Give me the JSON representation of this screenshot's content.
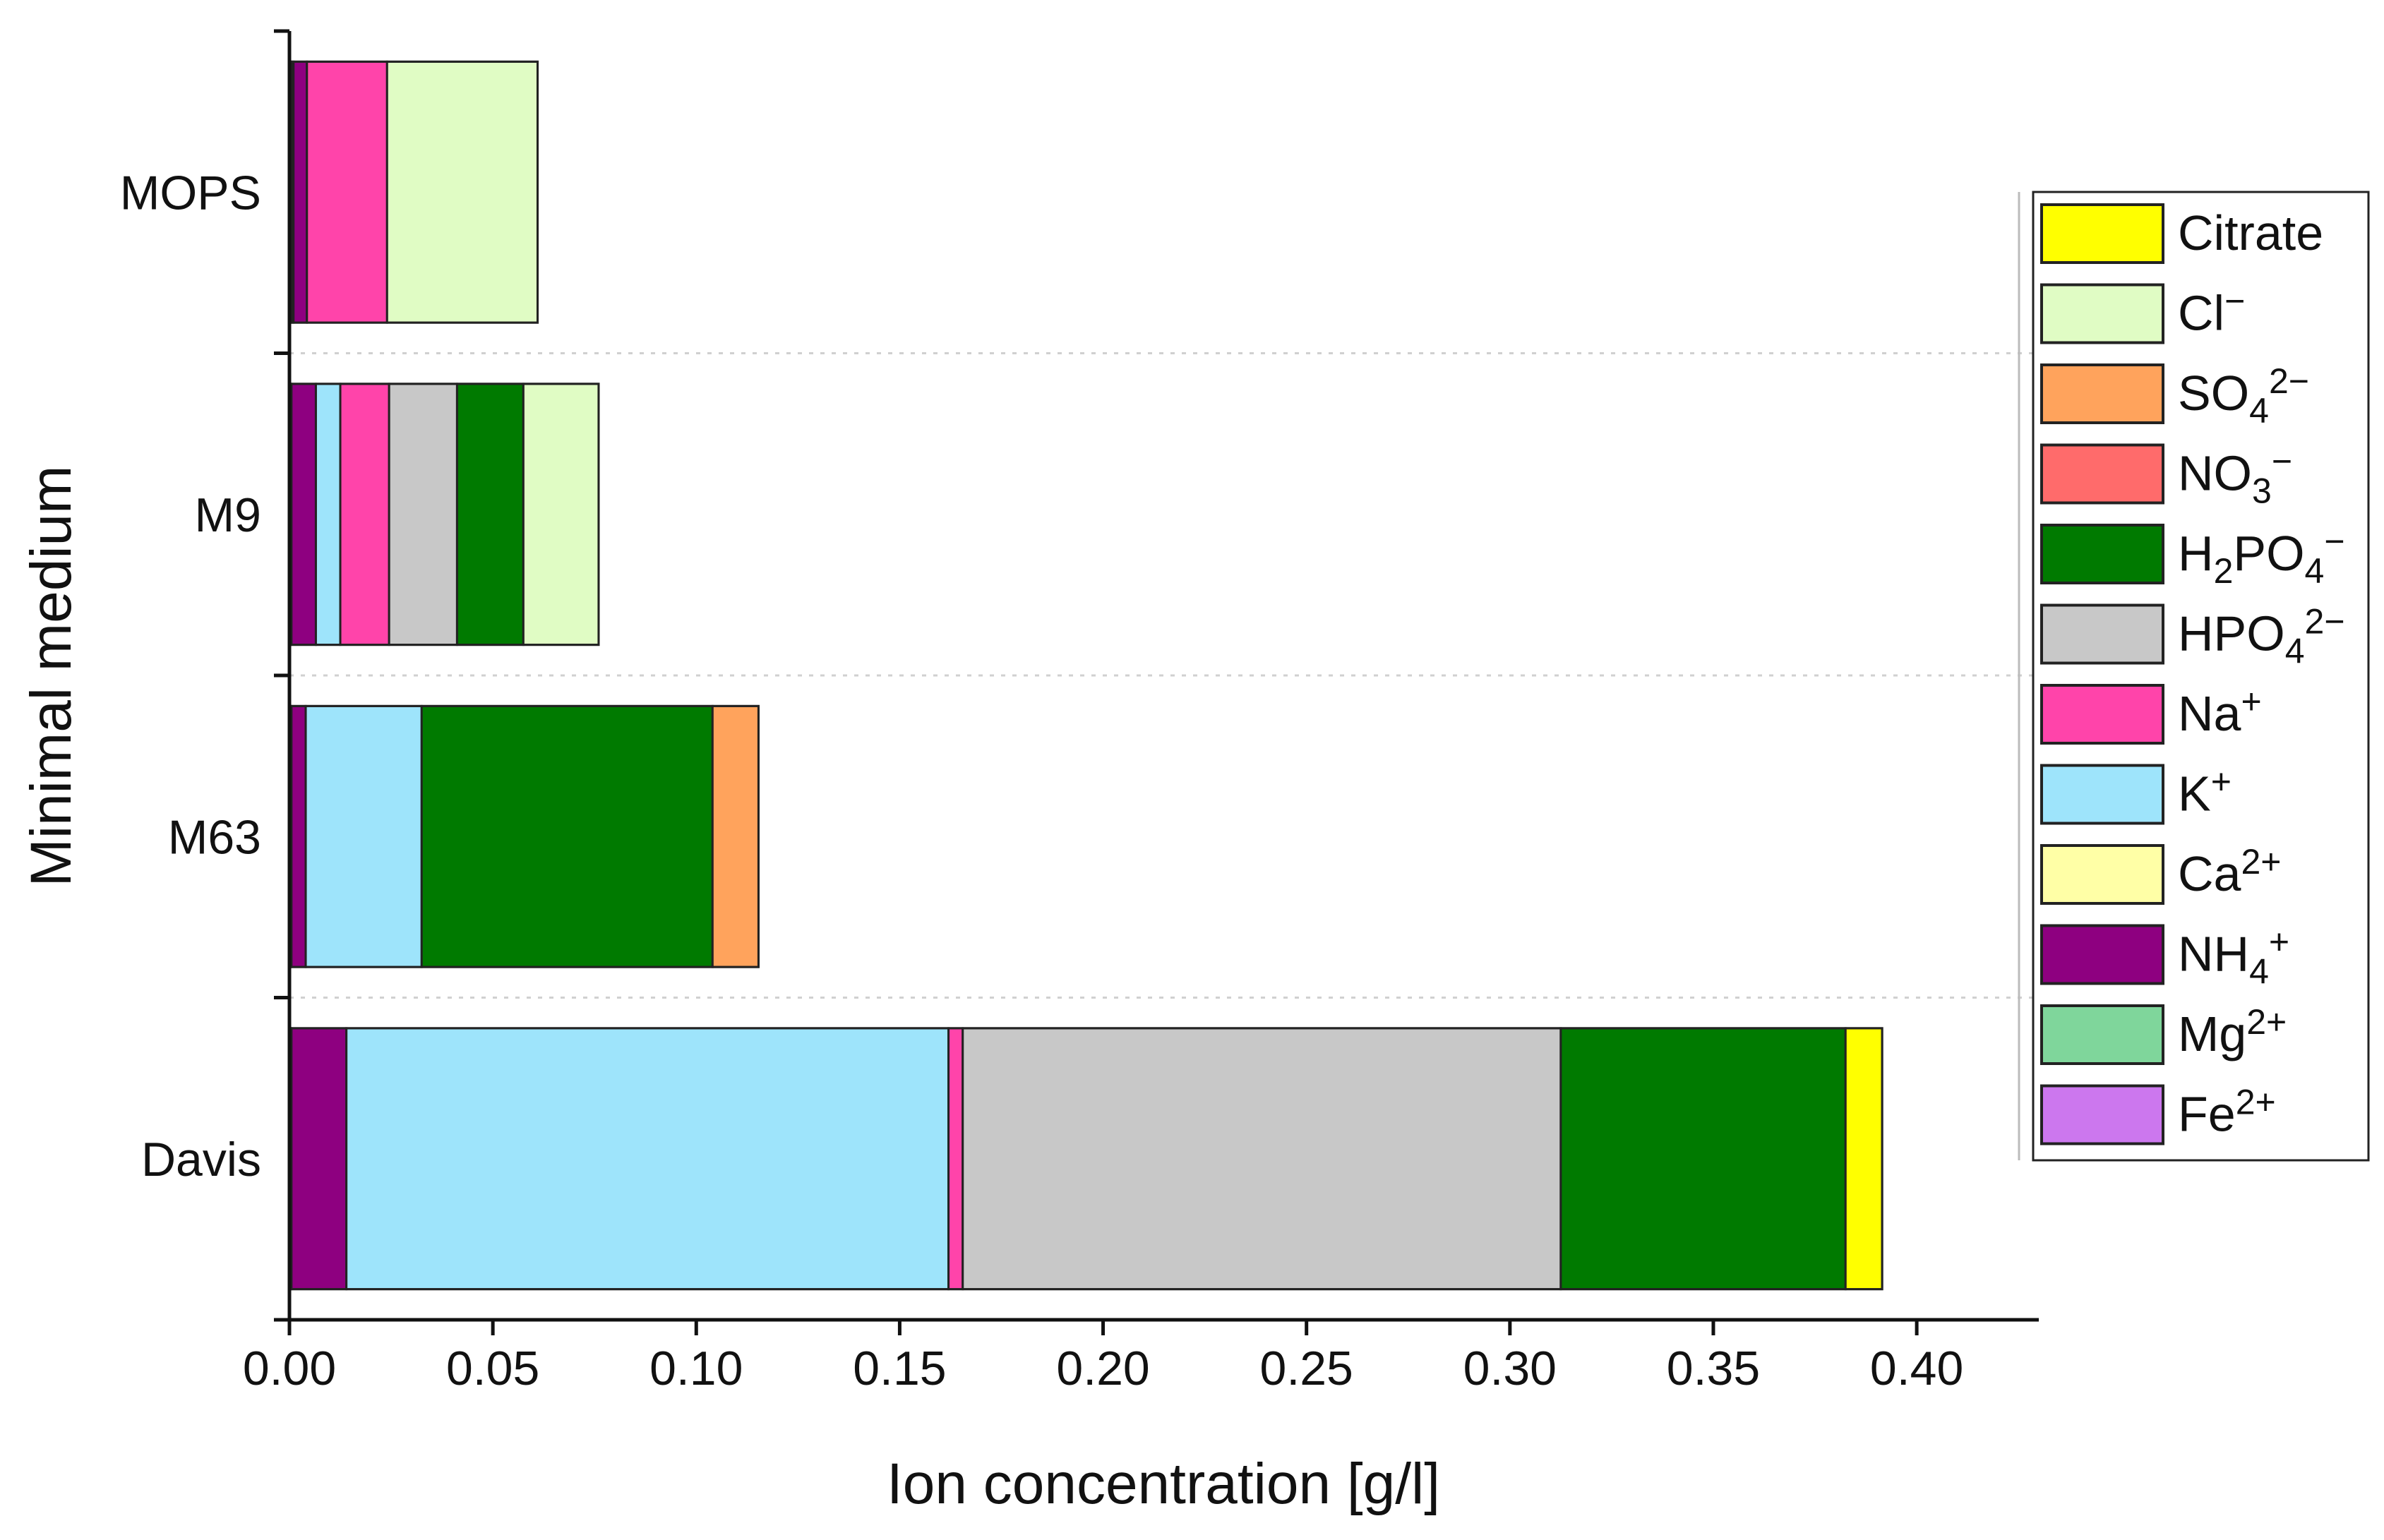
{
  "chart_data": {
    "type": "bar",
    "orientation": "horizontal",
    "stacked": true,
    "title": "",
    "xlabel": "Ion concentration [g/l]",
    "ylabel": "Minimal medium",
    "xlim": [
      0,
      0.43
    ],
    "xticks": [
      0.0,
      0.05,
      0.1,
      0.15,
      0.2,
      0.25,
      0.3,
      0.35,
      0.4
    ],
    "xtick_labels": [
      "0.00",
      "0.05",
      "0.10",
      "0.15",
      "0.20",
      "0.25",
      "0.30",
      "0.35",
      "0.40"
    ],
    "categories": [
      "MOPS",
      "M9",
      "M63",
      "Davis"
    ],
    "legend_position": "right",
    "series": [
      {
        "name": "Mg2+",
        "label": "Mg",
        "sub": "",
        "sup": "2+",
        "color": "#7fd69b",
        "values": [
          0.0005,
          0.0005,
          0.0005,
          0.0005
        ]
      },
      {
        "name": "Fe2+",
        "label": "Fe",
        "sub": "",
        "sup": "2+",
        "color": "#cc77ee",
        "values": [
          0.0005,
          0.0,
          0.0,
          0.0
        ]
      },
      {
        "name": "NH4+",
        "label": "NH",
        "sub": "4",
        "sup": "+",
        "color": "#8e0080",
        "values": [
          0.0033,
          0.006,
          0.0035,
          0.0135
        ]
      },
      {
        "name": "K+",
        "label": "K",
        "sub": "",
        "sup": "+",
        "color": "#9ee4fb",
        "values": [
          0.0,
          0.006,
          0.0285,
          0.148
        ]
      },
      {
        "name": "Na+",
        "label": "Na",
        "sub": "",
        "sup": "+",
        "color": "#ff44aa",
        "values": [
          0.0197,
          0.012,
          0.0,
          0.0035
        ]
      },
      {
        "name": "HPO42-",
        "label": "HPO",
        "sub": "4",
        "sup": "2−",
        "color": "#c8c8c8",
        "values": [
          0.0,
          0.0167,
          0.0,
          0.147
        ]
      },
      {
        "name": "H2PO4-",
        "label": "H",
        "sub": "2",
        "mid": "PO",
        "sub2": "4",
        "sup": "−",
        "color": "#007a00",
        "values": [
          0.0,
          0.0163,
          0.0715,
          0.07
        ]
      },
      {
        "name": "SO42-",
        "label": "SO",
        "sub": "4",
        "sup": "2−",
        "color": "#ffa35c",
        "values": [
          0.0,
          0.0,
          0.0113,
          0.0
        ]
      },
      {
        "name": "NO3-",
        "label": "NO",
        "sub": "3",
        "sup": "−",
        "color": "#ff6b6b",
        "values": [
          0.0,
          0.0,
          0.0,
          0.0
        ]
      },
      {
        "name": "Ca2+",
        "label": "Ca",
        "sub": "",
        "sup": "2+",
        "color": "#ffffa6",
        "values": [
          0.0,
          0.0,
          0.0,
          0.0
        ]
      },
      {
        "name": "Cl-",
        "label": "Cl",
        "sub": "",
        "sup": "−",
        "color": "#e0fcc4",
        "values": [
          0.037,
          0.0185,
          0.0,
          0.0
        ]
      },
      {
        "name": "Citrate",
        "label": "Citrate",
        "sub": "",
        "sup": "",
        "color": "#ffff00",
        "values": [
          0.0,
          0.0,
          0.0,
          0.009
        ]
      }
    ],
    "legend_order": [
      "Citrate",
      "Cl-",
      "SO42-",
      "NO3-",
      "H2PO4-",
      "HPO42-",
      "Na+",
      "K+",
      "Ca2+",
      "NH4+",
      "Mg2+",
      "Fe2+"
    ]
  }
}
